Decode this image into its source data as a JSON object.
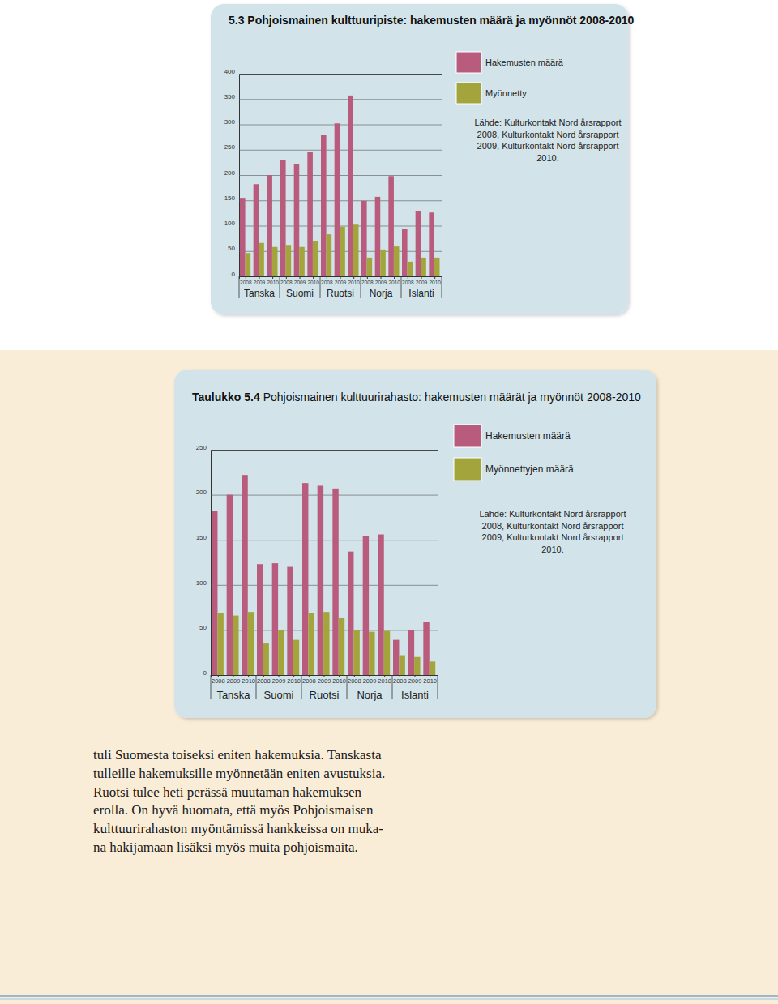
{
  "chart_data": [
    {
      "type": "bar",
      "title": "5.3 Pohjoismainen kulttuuripiste: hakemusten määrä ja myönnöt 2008-2010",
      "categories": [
        "2008",
        "2009",
        "2010",
        "2008",
        "2009",
        "2010",
        "2008",
        "2009",
        "2010",
        "2008",
        "2009",
        "2010",
        "2008",
        "2009",
        "2010"
      ],
      "groups": [
        "Tanska",
        "Suomi",
        "Ruotsi",
        "Norja",
        "Islanti"
      ],
      "series": [
        {
          "name": "Hakemusten määrä",
          "color": "#b95b7c",
          "values": [
            155,
            182,
            200,
            230,
            222,
            246,
            280,
            302,
            357,
            149,
            157,
            198,
            93,
            128,
            126
          ]
        },
        {
          "name": "Myönnetty",
          "color": "#a3a43c",
          "values": [
            46,
            66,
            58,
            62,
            58,
            69,
            83,
            98,
            102,
            37,
            53,
            59,
            29,
            37,
            37
          ]
        }
      ],
      "ylim": [
        0,
        400
      ],
      "yticks": [
        0,
        50,
        100,
        150,
        200,
        250,
        300,
        350,
        400
      ],
      "grid": true,
      "annotation": [
        "Lähde: Kulturkontakt Nord årsrapport",
        "2008, Kulturkontakt Nord årsrapport",
        "2009, Kulturkontakt Nord årsrapport",
        "2010."
      ]
    },
    {
      "type": "bar",
      "title": "Taulukko 5.4 Pohjoismainen kulttuurirahasto: hakemusten määrät ja myönnöt 2008-2010",
      "categories": [
        "2008",
        "2009",
        "2010",
        "2008",
        "2009",
        "2010",
        "2008",
        "2009",
        "2010",
        "2008",
        "2009",
        "2010",
        "2008",
        "2009",
        "2010"
      ],
      "groups": [
        "Tanska",
        "Suomi",
        "Ruotsi",
        "Norja",
        "Islanti"
      ],
      "series": [
        {
          "name": "Hakemusten määrä",
          "color": "#b95b7c",
          "values": [
            182,
            200,
            222,
            123,
            124,
            120,
            213,
            210,
            207,
            137,
            154,
            156,
            39,
            50,
            59
          ]
        },
        {
          "name": "Myönnettyjen määrä",
          "color": "#a3a43c",
          "values": [
            69,
            66,
            70,
            35,
            50,
            39,
            69,
            70,
            63,
            50,
            48,
            49,
            22,
            20,
            15
          ]
        }
      ],
      "ylim": [
        0,
        250
      ],
      "yticks": [
        0,
        50,
        100,
        150,
        200,
        250
      ],
      "grid": true,
      "annotation": [
        "Lähde: Kulturkontakt Nord årsrapport",
        "2008, Kulturkontakt Nord årsrapport",
        "2009, Kulturkontakt Nord årsrapport",
        "2010."
      ]
    }
  ],
  "body": {
    "paragraph": [
      "tuli Suomesta toiseksi eniten hakemuksia. Tanskasta",
      "tulleille hakemuksille myönnetään eniten avustuksia.",
      "Ruotsi tulee heti perässä muutaman hakemuksen",
      "erolla. On hyvä huomata, että myös Pohjoismaisen",
      "kulttuurirahaston myöntämissä hankkeissa on muka-",
      "na hakijamaan lisäksi myös muita pohjoismaita."
    ]
  }
}
